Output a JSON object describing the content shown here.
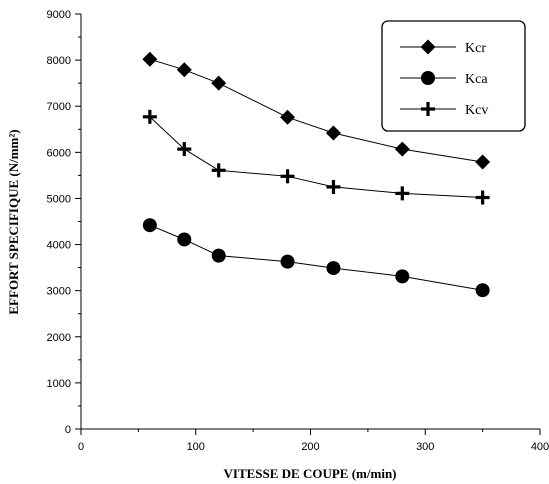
{
  "chart_data": {
    "type": "line",
    "title": "",
    "xlabel": "VITESSE DE COUPE (m/min)",
    "ylabel": "EFFORT SPECIFIQUE (N/mm²)",
    "xlim": [
      0,
      400
    ],
    "ylim": [
      0,
      9000
    ],
    "x_ticks": [
      "0",
      "100",
      "200",
      "300",
      "400"
    ],
    "y_ticks": [
      "0",
      "1000",
      "2000",
      "3000",
      "4000",
      "5000",
      "6000",
      "7000",
      "8000",
      "9000"
    ],
    "grid": false,
    "legend_position": "top-right",
    "x": [
      60,
      90,
      120,
      180,
      220,
      280,
      350
    ],
    "series": [
      {
        "name": "Kcr",
        "marker": "diamond",
        "values": [
          8020,
          7790,
          7500,
          6760,
          6420,
          6070,
          5790
        ]
      },
      {
        "name": "Kca",
        "marker": "circle",
        "values": [
          4420,
          4110,
          3760,
          3630,
          3490,
          3310,
          3010
        ]
      },
      {
        "name": "Kcv",
        "marker": "plus",
        "values": [
          6770,
          6070,
          5610,
          5480,
          5250,
          5110,
          5020
        ]
      }
    ]
  }
}
